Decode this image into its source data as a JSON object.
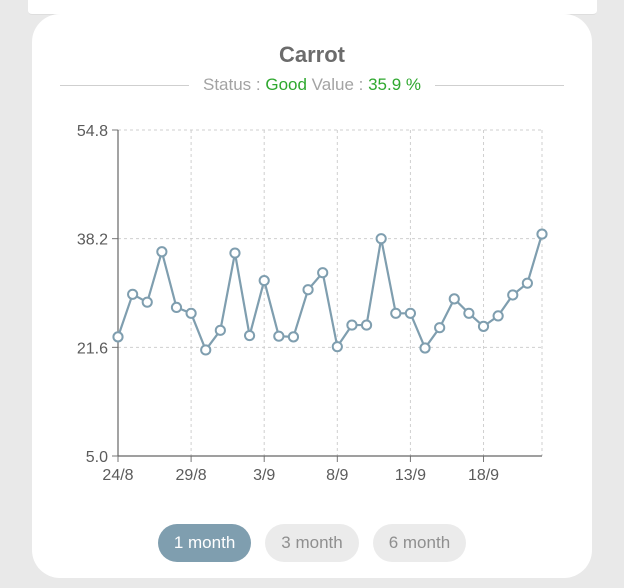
{
  "card": {
    "title": "Carrot",
    "status_label": "Status : ",
    "status_value": "Good",
    "value_label": " Value : ",
    "value_text": "35.9 %"
  },
  "colors": {
    "line": "#7f9eaf",
    "good": "#2fa82f",
    "active_button": "#7f9eaf",
    "inactive_button": "#ebebeb"
  },
  "buttons": [
    {
      "label": "1 month",
      "active": true
    },
    {
      "label": "3 month",
      "active": false
    },
    {
      "label": "6 month",
      "active": false
    }
  ],
  "chart_data": {
    "type": "line",
    "title": "",
    "xlabel": "",
    "ylabel": "",
    "ylim": [
      5.0,
      54.8
    ],
    "yticks": [
      "5.0",
      "21.6",
      "38.2",
      "54.8"
    ],
    "xticks": [
      "24/8",
      "29/8",
      "3/9",
      "8/9",
      "13/9",
      "18/9"
    ],
    "grid": true,
    "x": [
      "24/8",
      "25/8",
      "26/8",
      "27/8",
      "28/8",
      "29/8",
      "30/8",
      "31/8",
      "1/9",
      "2/9",
      "3/9",
      "4/9",
      "5/9",
      "6/9",
      "7/9",
      "8/9",
      "9/9",
      "10/9",
      "11/9",
      "12/9",
      "13/9",
      "14/9",
      "15/9",
      "16/9",
      "17/9",
      "18/9",
      "19/9",
      "20/9",
      "21/9",
      "22/9"
    ],
    "series": [
      {
        "values": [
          23.2,
          29.7,
          28.5,
          36.2,
          27.7,
          26.8,
          21.2,
          24.2,
          36.0,
          23.4,
          31.8,
          23.3,
          23.2,
          30.4,
          33.0,
          21.7,
          25.0,
          25.0,
          38.2,
          26.8,
          26.8,
          21.5,
          24.6,
          29.0,
          26.8,
          24.8,
          26.4,
          29.6,
          31.4,
          38.9
        ]
      }
    ]
  }
}
